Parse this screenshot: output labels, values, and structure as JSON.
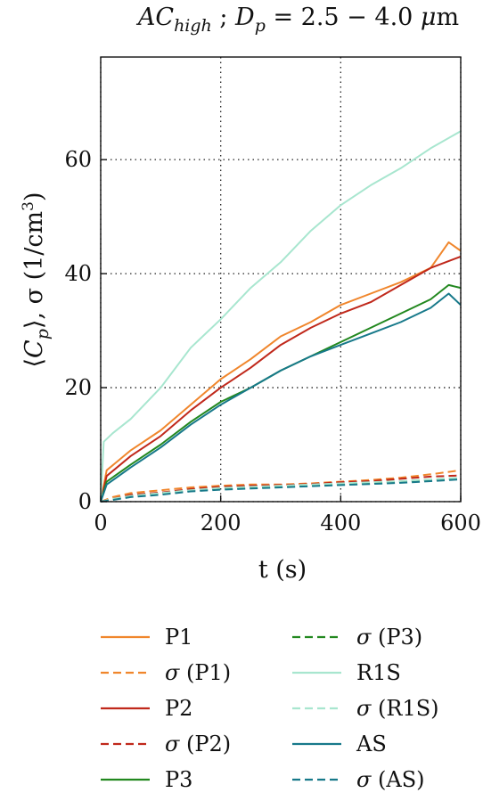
{
  "chart_data": {
    "type": "line",
    "title": "AC_high ; D_p = 2.5 − 4.0 μm",
    "title_parts": {
      "main": "AC",
      "main_sub": "high",
      "sep": " ; ",
      "var": "D",
      "var_sub": "p",
      "rest": " = 2.5 − 4.0 ",
      "mu": "μ",
      "unit": "m"
    },
    "xlabel": "t (s)",
    "ylabel": "⟨C_p⟩, σ (1/cm³)",
    "ylabel_parts": {
      "open": "⟨",
      "var": "C",
      "sub": "p",
      "close": "⟩",
      "sigma": ", σ (1/cm",
      "sup": "3",
      "end": ")"
    },
    "xlim": [
      0,
      600
    ],
    "ylim": [
      0,
      78
    ],
    "xticks": [
      0,
      200,
      400,
      600
    ],
    "yticks": [
      0,
      20,
      40,
      60
    ],
    "grid": true,
    "legend_position": "bottom",
    "series": [
      {
        "name": "P1",
        "color": "#f0862c",
        "dash": "solid",
        "x": [
          0,
          10,
          50,
          100,
          150,
          200,
          250,
          300,
          350,
          400,
          450,
          500,
          550,
          580,
          600
        ],
        "y": [
          0,
          5.5,
          9,
          12.5,
          17,
          21.5,
          25,
          29,
          31.5,
          34.5,
          36.5,
          38.5,
          41,
          45.5,
          44
        ]
      },
      {
        "name": "σ (P1)",
        "color": "#f0862c",
        "dash": "dashed",
        "x": [
          0,
          20,
          50,
          100,
          150,
          200,
          250,
          300,
          350,
          400,
          450,
          500,
          550,
          600
        ],
        "y": [
          0,
          0.8,
          1.5,
          2,
          2.5,
          2.8,
          3,
          3,
          3.2,
          3.5,
          3.8,
          4.2,
          4.8,
          5.5
        ]
      },
      {
        "name": "P2",
        "color": "#c0281b",
        "dash": "solid",
        "x": [
          0,
          10,
          50,
          100,
          150,
          200,
          250,
          300,
          350,
          400,
          450,
          500,
          550,
          600
        ],
        "y": [
          0,
          4.5,
          8,
          11.5,
          16,
          20,
          23.5,
          27.5,
          30.5,
          33,
          35,
          38,
          41,
          43
        ]
      },
      {
        "name": "σ (P2)",
        "color": "#c0281b",
        "dash": "dashed",
        "x": [
          0,
          20,
          50,
          100,
          150,
          200,
          250,
          300,
          350,
          400,
          450,
          500,
          550,
          600
        ],
        "y": [
          0,
          0.5,
          1.2,
          1.6,
          2.2,
          2.6,
          2.8,
          2.9,
          3.1,
          3.4,
          3.6,
          4,
          4.4,
          4.6
        ]
      },
      {
        "name": "P3",
        "color": "#22881f",
        "dash": "solid",
        "x": [
          0,
          10,
          50,
          100,
          150,
          200,
          250,
          300,
          350,
          400,
          450,
          500,
          550,
          580,
          600
        ],
        "y": [
          0,
          3.5,
          6.5,
          10,
          14,
          17.5,
          20,
          23,
          25.5,
          28,
          30.5,
          33,
          35.5,
          38,
          37.5
        ]
      },
      {
        "name": "σ (P3)",
        "color": "#22881f",
        "dash": "dashed",
        "x": [
          0,
          20,
          50,
          100,
          150,
          200,
          250,
          300,
          350,
          400,
          450,
          500,
          550,
          600
        ],
        "y": [
          0,
          0.4,
          1,
          1.4,
          2,
          2.3,
          2.5,
          2.6,
          2.8,
          3,
          3.2,
          3.5,
          3.8,
          4
        ]
      },
      {
        "name": "R1S",
        "color": "#a8e6cf",
        "dash": "solid",
        "x": [
          0,
          5,
          20,
          50,
          100,
          150,
          200,
          250,
          300,
          350,
          400,
          450,
          500,
          550,
          600
        ],
        "y": [
          0,
          10.5,
          12,
          14.5,
          20,
          27,
          32,
          37.5,
          42,
          47.5,
          52,
          55.5,
          58.5,
          62,
          65
        ]
      },
      {
        "name": "σ (R1S)",
        "color": "#a8e6cf",
        "dash": "dashed",
        "x": [
          0,
          20,
          50,
          100,
          150,
          200,
          250,
          300,
          350,
          400,
          450,
          500,
          550,
          600
        ],
        "y": [
          0,
          0.5,
          1,
          1.5,
          2,
          2.4,
          2.6,
          2.8,
          3,
          3.2,
          3.4,
          3.6,
          3.9,
          4.2
        ]
      },
      {
        "name": "AS",
        "color": "#17798a",
        "dash": "solid",
        "x": [
          0,
          10,
          50,
          100,
          150,
          200,
          250,
          300,
          350,
          400,
          450,
          500,
          550,
          580,
          600
        ],
        "y": [
          0,
          3,
          6,
          9.5,
          13.5,
          17,
          20,
          23,
          25.5,
          27.5,
          29.5,
          31.5,
          34,
          36.5,
          34.5
        ]
      },
      {
        "name": "σ (AS)",
        "color": "#17798a",
        "dash": "dashed",
        "x": [
          0,
          20,
          50,
          100,
          150,
          200,
          250,
          300,
          350,
          400,
          450,
          500,
          550,
          600
        ],
        "y": [
          0,
          0.3,
          0.8,
          1.2,
          1.8,
          2.1,
          2.3,
          2.5,
          2.7,
          2.9,
          3.1,
          3.3,
          3.6,
          3.9
        ]
      }
    ]
  }
}
